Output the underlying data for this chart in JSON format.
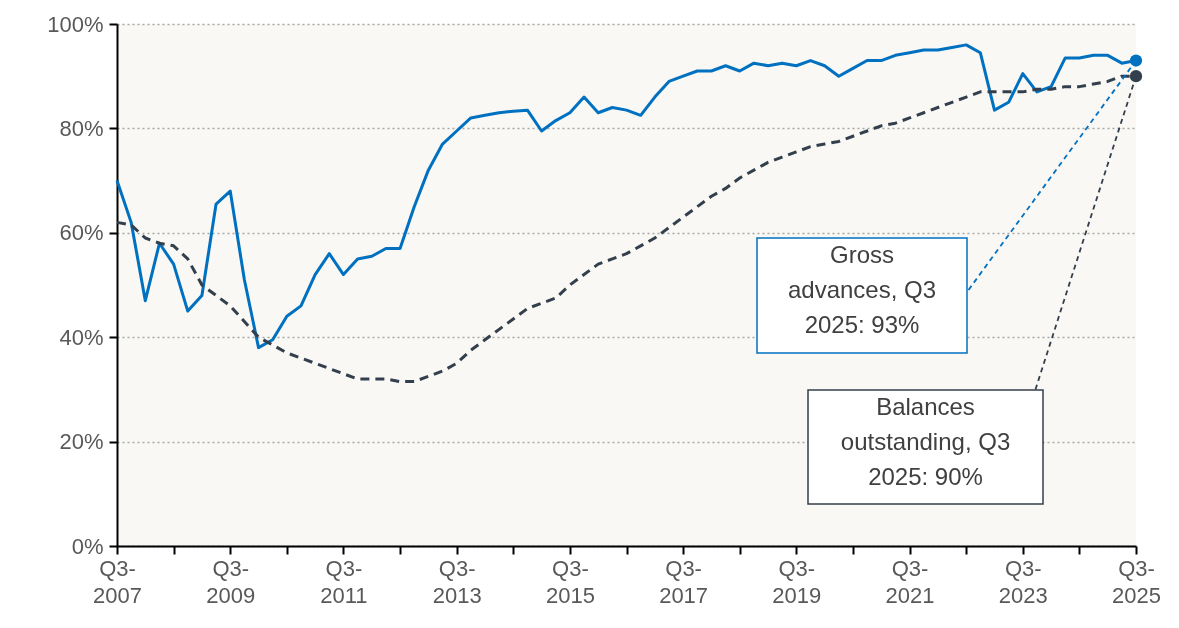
{
  "chart_data": {
    "type": "line",
    "categories": [
      "Q3-2007",
      null,
      null,
      null,
      null,
      null,
      null,
      null,
      "Q3-2009",
      null,
      null,
      null,
      null,
      null,
      null,
      null,
      "Q3-2011",
      null,
      null,
      null,
      null,
      null,
      null,
      null,
      "Q3-2013",
      null,
      null,
      null,
      null,
      null,
      null,
      null,
      "Q3-2015",
      null,
      null,
      null,
      null,
      null,
      null,
      null,
      "Q3-2017",
      null,
      null,
      null,
      null,
      null,
      null,
      null,
      "Q3-2019",
      null,
      null,
      null,
      null,
      null,
      null,
      null,
      "Q3-2021",
      null,
      null,
      null,
      null,
      null,
      null,
      null,
      "Q3-2023",
      null,
      null,
      null,
      null,
      null,
      null,
      null,
      "Q3-2025"
    ],
    "series": [
      {
        "color": "#0070c0",
        "line_style": "solid",
        "values": [
          70,
          62,
          47,
          58,
          54,
          45,
          48,
          65.5,
          68,
          51,
          38,
          39.5,
          44,
          46,
          52,
          56,
          52,
          55,
          55.5,
          57,
          57,
          65,
          72,
          77,
          79.5,
          82,
          82.5,
          83,
          83.3,
          83.5,
          79.5,
          81.5,
          83,
          86,
          83,
          84,
          83.5,
          82.5,
          86,
          89,
          90,
          91,
          91,
          92,
          91,
          92.5,
          92,
          92.5,
          92,
          93,
          92,
          90,
          91.5,
          93,
          93,
          94,
          94.5,
          95,
          95,
          95.5,
          96,
          94.5,
          83.5,
          85,
          90.5,
          87,
          88,
          93.5,
          93.5,
          94,
          94,
          92.5,
          93
        ]
      },
      {
        "color": "#333f4c",
        "line_style": "dashed",
        "values": [
          62,
          61.5,
          59,
          58,
          57.5,
          55,
          50,
          48,
          46,
          43,
          40,
          38.5,
          37,
          36,
          35,
          34,
          33,
          32,
          32,
          32,
          31.5,
          31.5,
          32.5,
          33.5,
          35,
          37.5,
          39.5,
          41.5,
          43.5,
          45.5,
          46.5,
          47.5,
          50,
          52,
          54,
          55,
          56,
          57.5,
          59,
          61,
          63,
          65,
          67,
          68.5,
          70.5,
          72,
          73.5,
          74.5,
          75.5,
          76.5,
          77,
          77.5,
          78.5,
          79.5,
          80.5,
          81,
          82,
          83,
          84,
          85,
          86,
          87,
          87,
          87,
          87,
          87.5,
          87.5,
          88,
          88,
          88.5,
          89,
          90,
          90
        ]
      }
    ],
    "ylim": [
      0,
      100
    ],
    "yticks": [
      {
        "value": 0,
        "label": "0%"
      },
      {
        "value": 20,
        "label": "20%"
      },
      {
        "value": 40,
        "label": "40%"
      },
      {
        "value": 60,
        "label": "60%"
      },
      {
        "value": 80,
        "label": "80%"
      },
      {
        "value": 100,
        "label": "100%"
      }
    ],
    "grid": "y",
    "annotations": [
      {
        "text": "Gross advances, Q3 2025: 93%",
        "x": "Q3-2025",
        "y": 93
      },
      {
        "text": "Balances outstanding, Q3 2025: 90%",
        "x": "Q3-2025",
        "y": 90
      }
    ]
  }
}
